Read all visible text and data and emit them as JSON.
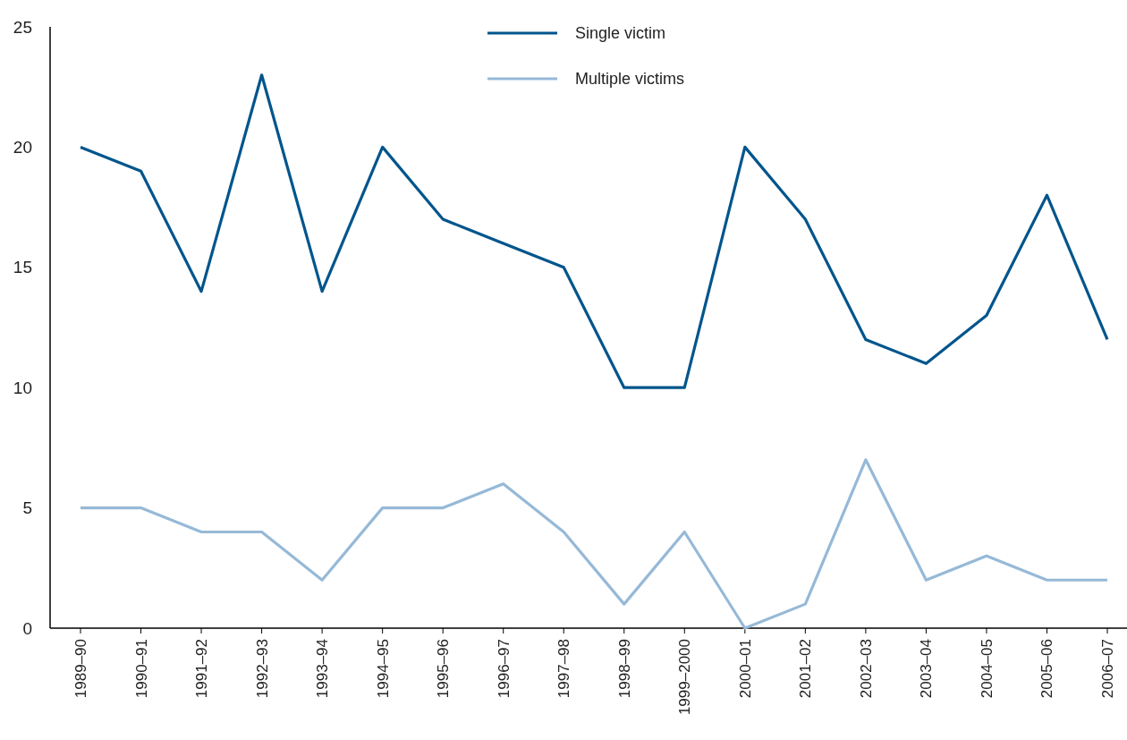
{
  "chart_data": {
    "type": "line",
    "categories": [
      "1989–90",
      "1990–91",
      "1991–92",
      "1992–93",
      "1993–94",
      "1994–95",
      "1995–96",
      "1996–97",
      "1997–98",
      "1998–99",
      "1999–2000",
      "2000–01",
      "2001–02",
      "2002–03",
      "2003–04",
      "2004–05",
      "2005–06",
      "2006–07"
    ],
    "series": [
      {
        "name": "Single victim",
        "color": "#00558c",
        "values": [
          20,
          19,
          14,
          23,
          14,
          20,
          17,
          16,
          15,
          10,
          10,
          20,
          17,
          12,
          11,
          13,
          18,
          12
        ]
      },
      {
        "name": "Multiple victims",
        "color": "#96b9d7",
        "values": [
          5,
          5,
          4,
          4,
          2,
          5,
          5,
          6,
          4,
          1,
          4,
          0,
          1,
          7,
          2,
          3,
          2,
          2
        ]
      }
    ],
    "ylim": [
      0,
      25
    ],
    "yticks": [
      0,
      5,
      10,
      15,
      20,
      25
    ],
    "grid": false,
    "legend": "top",
    "marker": "none",
    "line_style": "solid"
  }
}
